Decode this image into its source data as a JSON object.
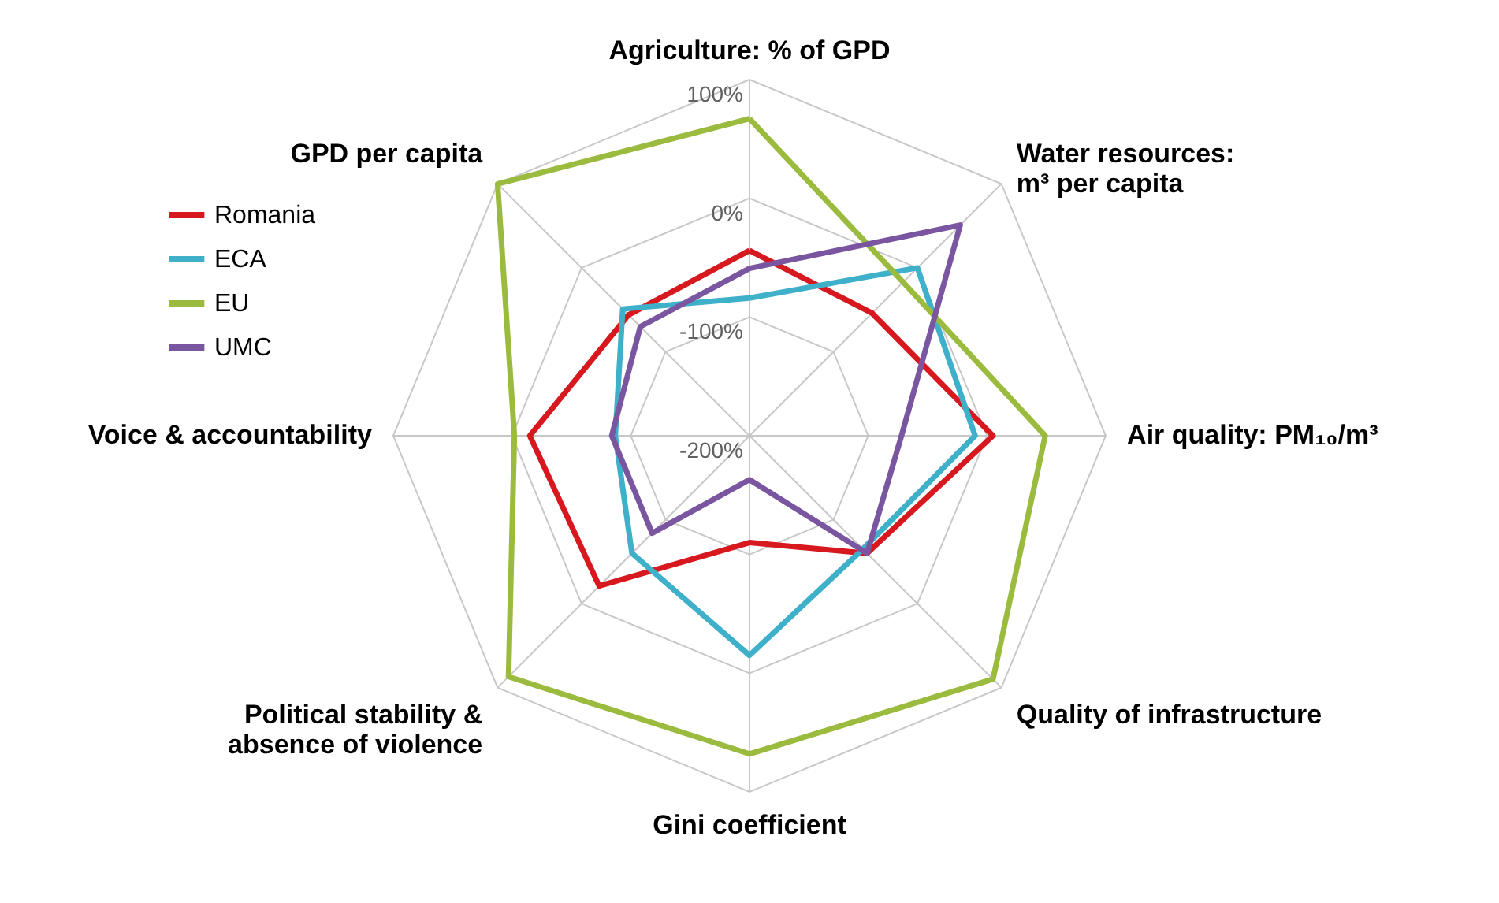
{
  "chart_data": {
    "type": "radar",
    "categories": [
      "Agriculture: % of GPD",
      "Water resources:\nm³ per capita",
      "Air quality: PM₁₀/m³",
      "Quality of infrastructure",
      "Gini coefficient",
      "Political stability &\nabsence of violence",
      "Voice & accountability",
      "GPD per capita"
    ],
    "series": [
      {
        "name": "Romania",
        "color": "#d7191f",
        "values": [
          -44,
          -54,
          5,
          -60,
          -110,
          -21,
          -15,
          -56
        ]
      },
      {
        "name": "ECA",
        "color": "#3fb0c9",
        "values": [
          -84,
          0,
          -10,
          -65,
          -15,
          -60,
          -87,
          -49
        ]
      },
      {
        "name": "EU",
        "color": "#9bbb3f",
        "values": [
          67,
          -17,
          49,
          90,
          68,
          87,
          -2,
          100
        ]
      },
      {
        "name": "UMC",
        "color": "#7a55a0",
        "values": [
          -59,
          51,
          -72,
          -60,
          -163,
          -84,
          -84,
          -70
        ]
      }
    ],
    "ylim": [
      -200,
      100
    ],
    "yticks": [
      {
        "value": -200,
        "label": "-200%"
      },
      {
        "value": -100,
        "label": "-100%"
      },
      {
        "value": 0,
        "label": "0%"
      },
      {
        "value": 100,
        "label": "100%"
      }
    ],
    "grid": true,
    "legend": "top left"
  }
}
